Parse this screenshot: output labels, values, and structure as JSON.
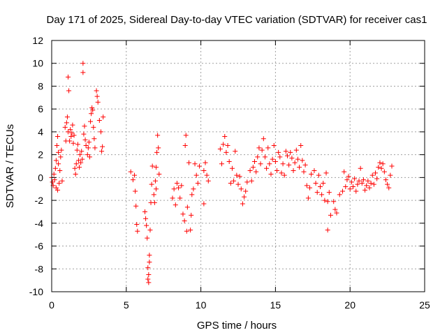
{
  "chart_data": {
    "type": "scatter",
    "title": "Day 171 of 2025, Sidereal Day-to-day VTEC variation (SDTVAR) for receiver cas1",
    "xlabel": "GPS time / hours",
    "ylabel": "SDTVAR / TECUs",
    "xlim": [
      0,
      25
    ],
    "ylim": [
      -10,
      12
    ],
    "xticks": [
      0,
      5,
      10,
      15,
      20,
      25
    ],
    "yticks": [
      -10,
      -8,
      -6,
      -4,
      -2,
      0,
      2,
      4,
      6,
      8,
      10,
      12
    ],
    "grid": true,
    "marker": "+",
    "marker_color": "#ff0000",
    "series": [
      {
        "name": "cas1",
        "points": [
          [
            0.0,
            0.0
          ],
          [
            0.05,
            -0.4
          ],
          [
            0.1,
            -0.7
          ],
          [
            0.15,
            0.3
          ],
          [
            0.2,
            -0.2
          ],
          [
            0.25,
            0.8
          ],
          [
            0.3,
            1.5
          ],
          [
            0.35,
            2.8
          ],
          [
            0.4,
            3.6
          ],
          [
            0.45,
            1.2
          ],
          [
            0.5,
            -0.5
          ],
          [
            0.55,
            0.6
          ],
          [
            0.6,
            1.8
          ],
          [
            0.65,
            2.4
          ],
          [
            0.7,
            -0.3
          ],
          [
            0.3,
            -0.9
          ],
          [
            0.4,
            -1.1
          ],
          [
            0.45,
            2.2
          ],
          [
            0.9,
            4.4
          ],
          [
            0.95,
            3.2
          ],
          [
            1.0,
            4.8
          ],
          [
            1.05,
            5.3
          ],
          [
            1.1,
            4.0
          ],
          [
            1.1,
            8.8
          ],
          [
            1.15,
            7.6
          ],
          [
            1.2,
            3.2
          ],
          [
            1.25,
            4.2
          ],
          [
            1.3,
            3.6
          ],
          [
            1.35,
            3.9
          ],
          [
            1.4,
            4.6
          ],
          [
            1.45,
            3.0
          ],
          [
            1.5,
            3.7
          ],
          [
            1.55,
            0.8
          ],
          [
            1.6,
            0.3
          ],
          [
            1.65,
            1.2
          ],
          [
            1.7,
            2.4
          ],
          [
            1.75,
            2.9
          ],
          [
            1.8,
            1.5
          ],
          [
            1.85,
            0.9
          ],
          [
            1.9,
            2.0
          ],
          [
            1.95,
            1.3
          ],
          [
            2.0,
            2.3
          ],
          [
            2.05,
            1.6
          ],
          [
            2.1,
            9.2
          ],
          [
            2.1,
            10.0
          ],
          [
            2.15,
            3.8
          ],
          [
            2.2,
            4.5
          ],
          [
            2.25,
            3.3
          ],
          [
            2.3,
            2.8
          ],
          [
            2.4,
            2.0
          ],
          [
            2.45,
            2.6
          ],
          [
            2.5,
            3.1
          ],
          [
            2.55,
            1.8
          ],
          [
            2.6,
            4.9
          ],
          [
            2.65,
            5.6
          ],
          [
            2.7,
            6.1
          ],
          [
            2.75,
            5.9
          ],
          [
            2.8,
            4.4
          ],
          [
            2.85,
            3.4
          ],
          [
            2.9,
            2.6
          ],
          [
            3.0,
            7.6
          ],
          [
            3.05,
            7.1
          ],
          [
            3.1,
            6.6
          ],
          [
            3.2,
            5.0
          ],
          [
            3.3,
            4.0
          ],
          [
            3.35,
            2.3
          ],
          [
            3.4,
            2.7
          ],
          [
            3.45,
            5.3
          ],
          [
            5.3,
            0.5
          ],
          [
            5.45,
            -0.2
          ],
          [
            5.55,
            0.2
          ],
          [
            5.6,
            -1.2
          ],
          [
            5.65,
            -2.5
          ],
          [
            5.7,
            -4.1
          ],
          [
            5.75,
            -4.7
          ],
          [
            6.25,
            -3.0
          ],
          [
            6.3,
            -3.6
          ],
          [
            6.35,
            -4.2
          ],
          [
            6.4,
            -5.3
          ],
          [
            6.45,
            -7.9
          ],
          [
            6.45,
            -8.9
          ],
          [
            6.5,
            -9.2
          ],
          [
            6.5,
            -8.5
          ],
          [
            6.55,
            -7.4
          ],
          [
            6.55,
            -6.8
          ],
          [
            6.6,
            -4.6
          ],
          [
            6.65,
            -2.2
          ],
          [
            6.7,
            -0.6
          ],
          [
            6.75,
            1.0
          ],
          [
            6.85,
            -1.5
          ],
          [
            6.9,
            -2.2
          ],
          [
            6.95,
            -0.3
          ],
          [
            7.0,
            0.9
          ],
          [
            7.05,
            2.2
          ],
          [
            7.1,
            3.7
          ],
          [
            7.15,
            2.6
          ],
          [
            7.2,
            0.3
          ],
          [
            7.0,
            -1.0
          ],
          [
            8.1,
            -1.8
          ],
          [
            8.2,
            -1.0
          ],
          [
            8.3,
            -2.4
          ],
          [
            8.4,
            -0.5
          ],
          [
            8.5,
            -0.9
          ],
          [
            8.6,
            -1.8
          ],
          [
            8.7,
            -0.7
          ],
          [
            8.8,
            -3.2
          ],
          [
            8.9,
            -3.8
          ],
          [
            8.95,
            2.8
          ],
          [
            9.0,
            3.7
          ],
          [
            9.05,
            -4.7
          ],
          [
            9.1,
            -2.6
          ],
          [
            9.2,
            1.3
          ],
          [
            9.3,
            -4.6
          ],
          [
            9.35,
            -3.3
          ],
          [
            9.4,
            -1.5
          ],
          [
            9.5,
            -1.0
          ],
          [
            9.6,
            1.2
          ],
          [
            9.7,
            0.2
          ],
          [
            9.8,
            -0.5
          ],
          [
            9.9,
            1.0
          ],
          [
            10.2,
            0.6
          ],
          [
            10.3,
            1.3
          ],
          [
            10.4,
            0.2
          ],
          [
            10.5,
            -0.3
          ],
          [
            10.2,
            -2.3
          ],
          [
            11.3,
            2.5
          ],
          [
            11.4,
            1.2
          ],
          [
            11.5,
            2.9
          ],
          [
            11.6,
            3.6
          ],
          [
            11.7,
            2.2
          ],
          [
            11.8,
            2.8
          ],
          [
            11.9,
            1.4
          ],
          [
            12.0,
            -0.5
          ],
          [
            12.1,
            0.8
          ],
          [
            12.2,
            -0.3
          ],
          [
            12.3,
            2.3
          ],
          [
            12.4,
            0.2
          ],
          [
            12.5,
            -0.6
          ],
          [
            12.6,
            0.1
          ],
          [
            12.7,
            -1.0
          ],
          [
            12.8,
            -2.3
          ],
          [
            12.9,
            -1.7
          ],
          [
            13.0,
            -1.2
          ],
          [
            13.1,
            -0.4
          ],
          [
            13.3,
            0.6
          ],
          [
            13.4,
            -0.3
          ],
          [
            13.5,
            0.9
          ],
          [
            13.6,
            1.4
          ],
          [
            13.7,
            0.5
          ],
          [
            13.8,
            1.8
          ],
          [
            13.9,
            2.6
          ],
          [
            14.0,
            1.2
          ],
          [
            14.1,
            2.4
          ],
          [
            14.2,
            3.4
          ],
          [
            14.3,
            1.8
          ],
          [
            14.4,
            0.8
          ],
          [
            14.5,
            2.6
          ],
          [
            14.6,
            1.2
          ],
          [
            14.7,
            0.3
          ],
          [
            14.8,
            1.6
          ],
          [
            14.9,
            2.8
          ],
          [
            15.0,
            1.4
          ],
          [
            15.1,
            0.6
          ],
          [
            15.2,
            2.2
          ],
          [
            15.3,
            1.8
          ],
          [
            15.4,
            0.4
          ],
          [
            15.5,
            1.2
          ],
          [
            15.6,
            0.2
          ],
          [
            15.7,
            2.3
          ],
          [
            15.8,
            1.9
          ],
          [
            15.9,
            1.1
          ],
          [
            16.0,
            2.2
          ],
          [
            16.1,
            1.7
          ],
          [
            16.2,
            0.6
          ],
          [
            16.3,
            1.3
          ],
          [
            16.4,
            2.4
          ],
          [
            16.5,
            1.6
          ],
          [
            16.6,
            0.9
          ],
          [
            16.7,
            2.8
          ],
          [
            16.8,
            1.5
          ],
          [
            16.9,
            0.5
          ],
          [
            17.0,
            1.1
          ],
          [
            17.1,
            -0.7
          ],
          [
            17.2,
            -1.8
          ],
          [
            17.3,
            -0.9
          ],
          [
            17.4,
            0.3
          ],
          [
            17.6,
            0.6
          ],
          [
            17.7,
            -0.5
          ],
          [
            17.8,
            -1.3
          ],
          [
            17.9,
            0.2
          ],
          [
            18.0,
            -0.8
          ],
          [
            18.1,
            -1.5
          ],
          [
            18.2,
            -0.5
          ],
          [
            18.3,
            -2.0
          ],
          [
            18.4,
            0.4
          ],
          [
            18.5,
            -2.1
          ],
          [
            18.6,
            -1.3
          ],
          [
            18.7,
            -3.3
          ],
          [
            18.5,
            -4.6
          ],
          [
            18.9,
            -2.1
          ],
          [
            19.0,
            -2.8
          ],
          [
            19.1,
            -3.1
          ],
          [
            19.3,
            -1.5
          ],
          [
            19.5,
            -1.2
          ],
          [
            19.6,
            0.5
          ],
          [
            19.7,
            -0.8
          ],
          [
            19.8,
            -0.2
          ],
          [
            19.9,
            0.1
          ],
          [
            20.0,
            -1.0
          ],
          [
            20.1,
            -0.4
          ],
          [
            20.2,
            -0.8
          ],
          [
            20.3,
            -0.1
          ],
          [
            20.4,
            -1.2
          ],
          [
            20.5,
            -0.6
          ],
          [
            20.6,
            -0.3
          ],
          [
            20.7,
            0.8
          ],
          [
            20.8,
            -0.5
          ],
          [
            20.9,
            -0.2
          ],
          [
            21.0,
            -1.1
          ],
          [
            21.1,
            -0.7
          ],
          [
            21.2,
            -0.3
          ],
          [
            21.3,
            -0.9
          ],
          [
            21.4,
            -0.5
          ],
          [
            21.5,
            0.2
          ],
          [
            21.6,
            -0.6
          ],
          [
            21.7,
            0.4
          ],
          [
            21.8,
            -0.1
          ],
          [
            21.9,
            0.9
          ],
          [
            22.0,
            1.3
          ],
          [
            22.1,
            0.8
          ],
          [
            22.2,
            1.2
          ],
          [
            22.3,
            0.5
          ],
          [
            22.4,
            -0.2
          ],
          [
            22.5,
            -0.6
          ],
          [
            22.6,
            -0.9
          ],
          [
            22.7,
            0.2
          ],
          [
            22.8,
            1.0
          ]
        ]
      }
    ]
  }
}
